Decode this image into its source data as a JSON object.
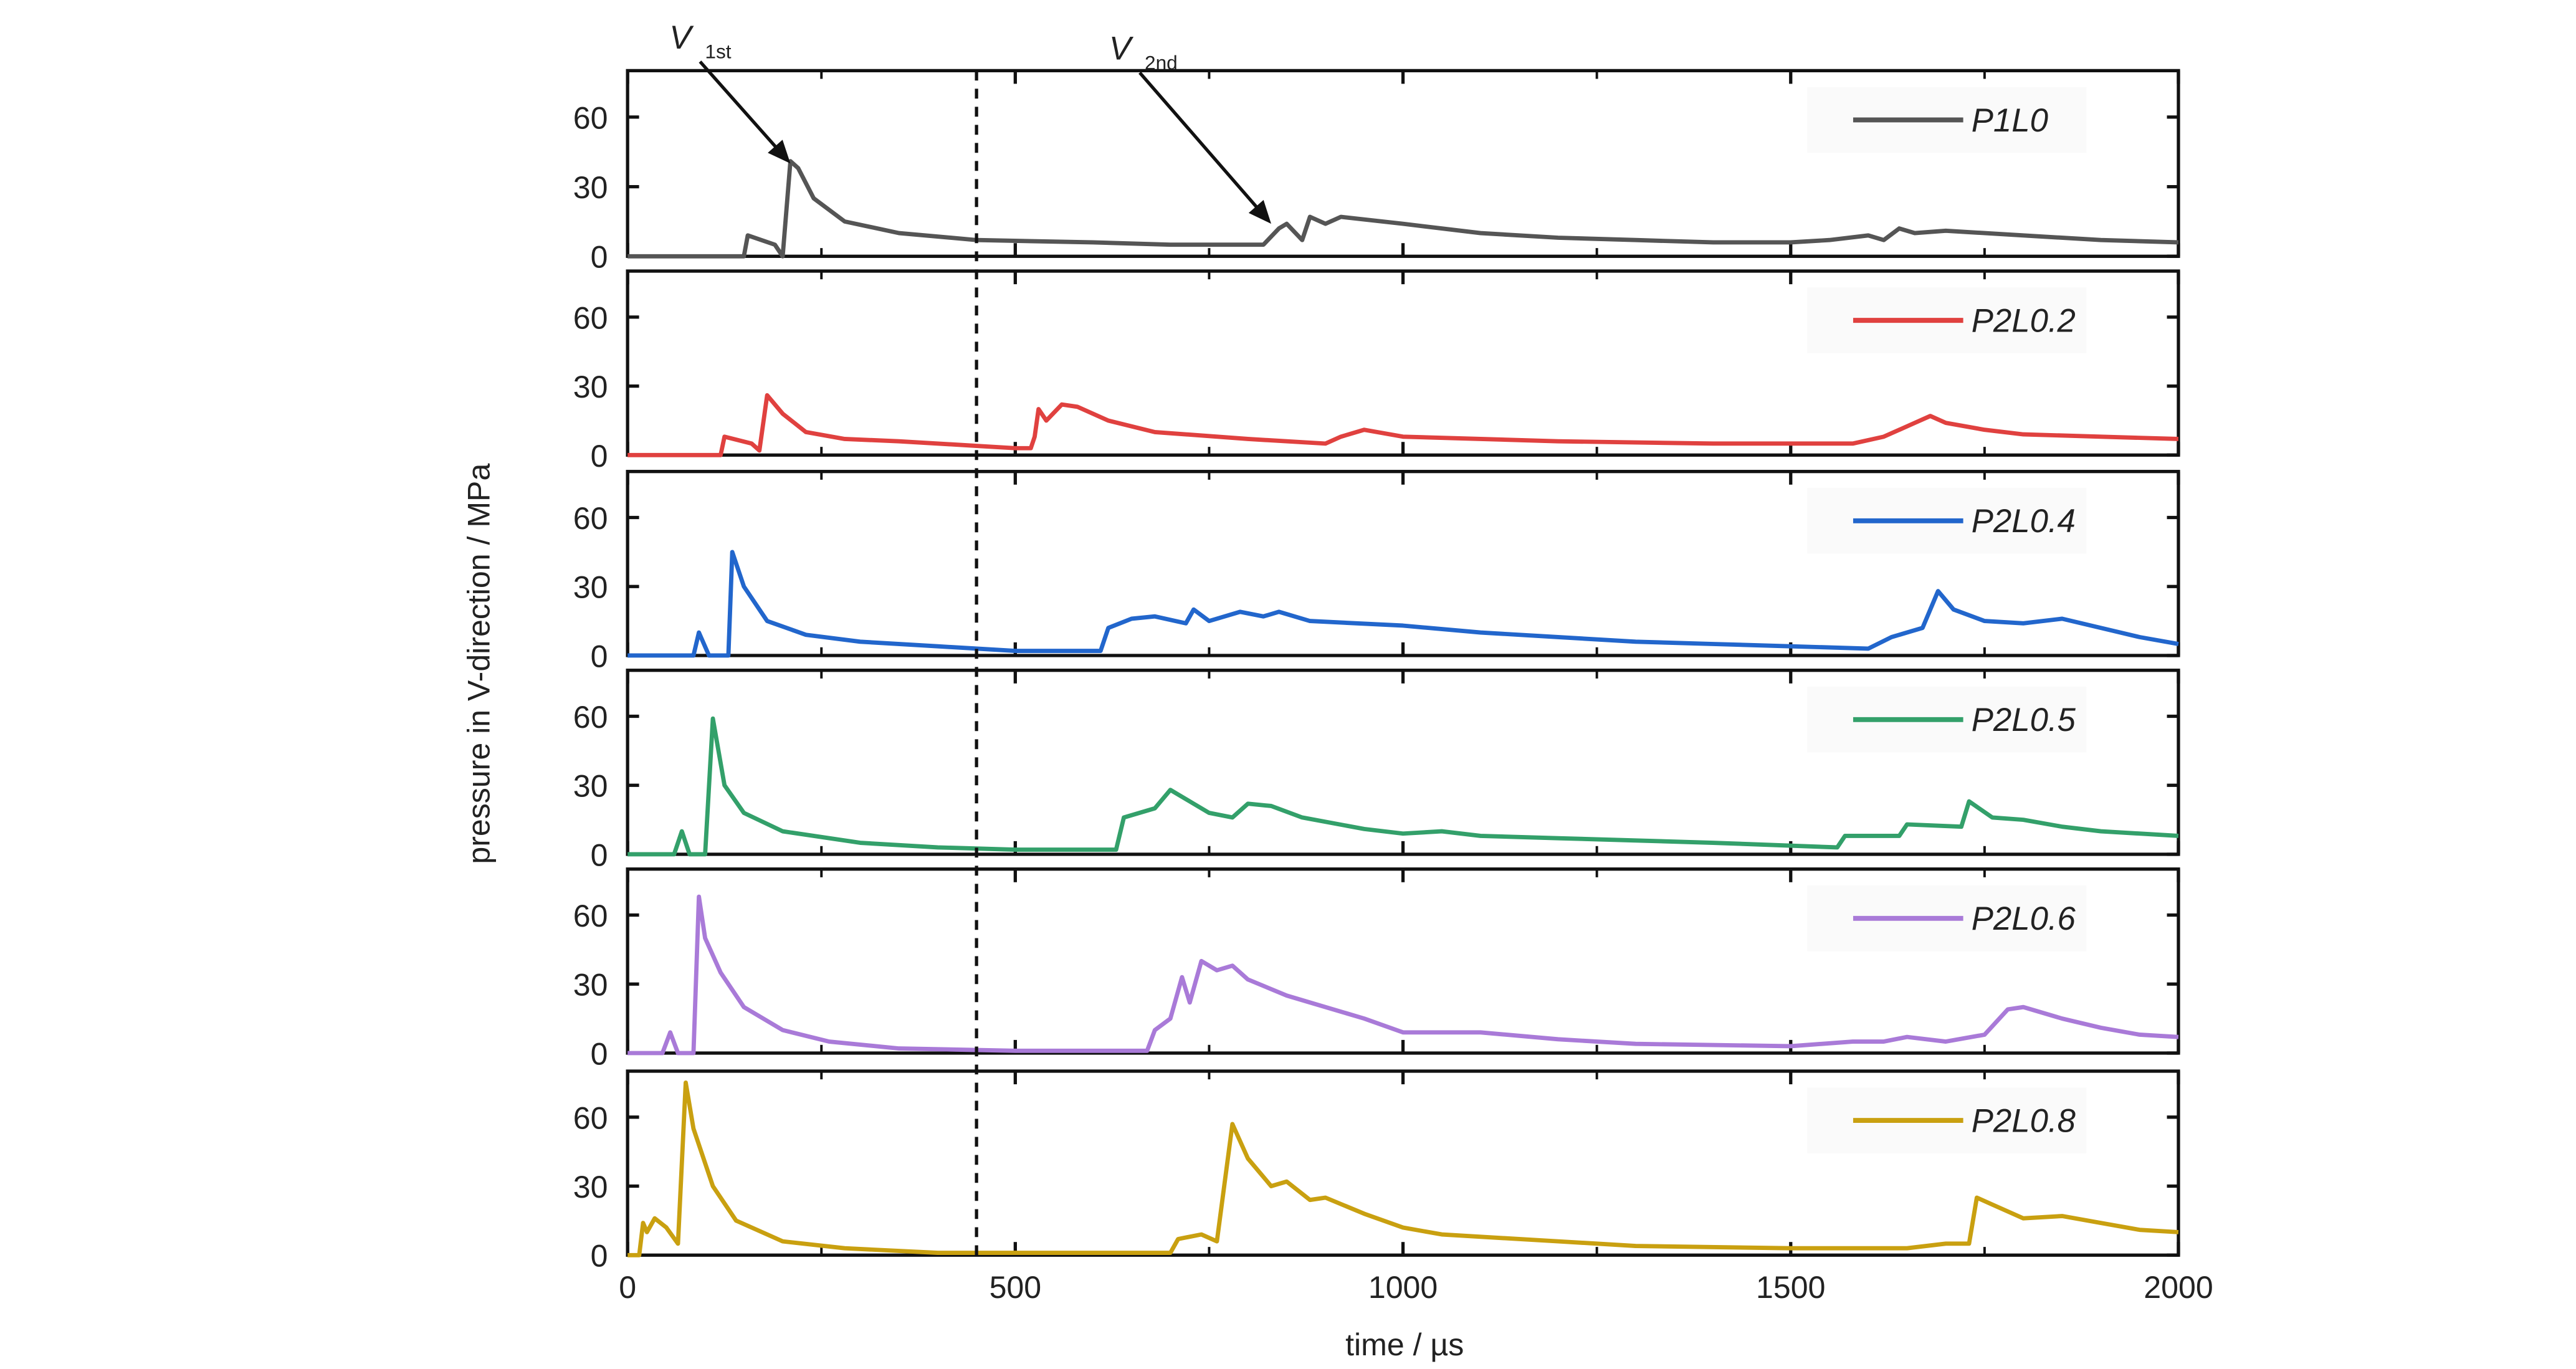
{
  "y_label": "pressure in V-direction / MPa",
  "x_label": "time / µs",
  "reference_x": 450,
  "chart_data": [
    {
      "type": "line",
      "x": [
        0,
        150,
        155,
        190,
        200,
        210,
        220,
        240,
        280,
        350,
        450,
        600,
        700,
        820,
        840,
        850,
        870,
        880,
        900,
        920,
        1000,
        1100,
        1200,
        1300,
        1400,
        1500,
        1550,
        1600,
        1620,
        1640,
        1660,
        1700,
        1800,
        1900,
        2000
      ],
      "series": [
        {
          "name": "P1L0",
          "color": "#555555",
          "values": [
            0,
            0,
            9,
            5,
            0,
            41,
            38,
            25,
            15,
            10,
            7,
            6,
            5,
            5,
            12,
            14,
            7,
            17,
            14,
            17,
            14,
            10,
            8,
            7,
            6,
            6,
            7,
            9,
            7,
            12,
            10,
            11,
            9,
            7,
            6
          ]
        }
      ],
      "annotations": [
        {
          "text": "V",
          "sub": "1st",
          "xy": [
            210,
            40
          ]
        },
        {
          "text": "V",
          "sub": "2nd",
          "xy": [
            830,
            14
          ]
        }
      ],
      "xlim": [
        0,
        2000
      ],
      "xticks": [
        0,
        500,
        1000,
        1500,
        2000
      ],
      "xticks_minor": [
        250,
        750,
        1250,
        1750
      ],
      "ylim": [
        0,
        80
      ],
      "yticks": [
        0,
        30,
        60
      ]
    },
    {
      "type": "line",
      "x": [
        0,
        120,
        125,
        160,
        170,
        180,
        200,
        230,
        280,
        350,
        450,
        500,
        520,
        525,
        530,
        540,
        560,
        580,
        620,
        680,
        800,
        900,
        920,
        950,
        1000,
        1100,
        1200,
        1400,
        1580,
        1620,
        1660,
        1680,
        1700,
        1750,
        1800,
        1900,
        2000
      ],
      "series": [
        {
          "name": "P2L0.2",
          "color": "#e0413f",
          "values": [
            0,
            0,
            8,
            5,
            2,
            26,
            18,
            10,
            7,
            6,
            4,
            3,
            3,
            8,
            20,
            15,
            22,
            21,
            15,
            10,
            7,
            5,
            8,
            11,
            8,
            7,
            6,
            5,
            5,
            8,
            14,
            17,
            14,
            11,
            9,
            8,
            7
          ]
        }
      ],
      "xlim": [
        0,
        2000
      ],
      "xticks": [
        0,
        500,
        1000,
        1500,
        2000
      ],
      "xticks_minor": [
        250,
        750,
        1250,
        1750
      ],
      "ylim": [
        0,
        80
      ],
      "yticks": [
        0,
        30,
        60
      ]
    },
    {
      "type": "line",
      "x": [
        0,
        85,
        92,
        105,
        130,
        135,
        150,
        180,
        230,
        300,
        400,
        500,
        610,
        620,
        650,
        680,
        720,
        730,
        750,
        790,
        820,
        840,
        880,
        1000,
        1100,
        1200,
        1300,
        1400,
        1500,
        1600,
        1630,
        1670,
        1690,
        1710,
        1750,
        1800,
        1850,
        1900,
        1950,
        2000
      ],
      "series": [
        {
          "name": "P2L0.4",
          "color": "#2266cc",
          "values": [
            0,
            0,
            10,
            0,
            0,
            45,
            30,
            15,
            9,
            6,
            4,
            2,
            2,
            12,
            16,
            17,
            14,
            20,
            15,
            19,
            17,
            19,
            15,
            13,
            10,
            8,
            6,
            5,
            4,
            3,
            8,
            12,
            28,
            20,
            15,
            14,
            16,
            12,
            8,
            5
          ]
        }
      ],
      "xlim": [
        0,
        2000
      ],
      "xticks": [
        0,
        500,
        1000,
        1500,
        2000
      ],
      "xticks_minor": [
        250,
        750,
        1250,
        1750
      ],
      "ylim": [
        0,
        80
      ],
      "yticks": [
        0,
        30,
        60
      ]
    },
    {
      "type": "line",
      "x": [
        0,
        60,
        70,
        80,
        100,
        110,
        125,
        150,
        200,
        300,
        400,
        500,
        630,
        640,
        680,
        700,
        730,
        750,
        780,
        800,
        830,
        870,
        950,
        1000,
        1050,
        1100,
        1200,
        1300,
        1400,
        1560,
        1570,
        1640,
        1650,
        1720,
        1730,
        1760,
        1800,
        1850,
        1900,
        2000
      ],
      "series": [
        {
          "name": "P2L0.5",
          "color": "#33a06a",
          "values": [
            0,
            0,
            10,
            0,
            0,
            59,
            30,
            18,
            10,
            5,
            3,
            2,
            2,
            16,
            20,
            28,
            22,
            18,
            16,
            22,
            21,
            16,
            11,
            9,
            10,
            8,
            7,
            6,
            5,
            3,
            8,
            8,
            13,
            12,
            23,
            16,
            15,
            12,
            10,
            8
          ]
        }
      ],
      "xlim": [
        0,
        2000
      ],
      "xticks": [
        0,
        500,
        1000,
        1500,
        2000
      ],
      "xticks_minor": [
        250,
        750,
        1250,
        1750
      ],
      "ylim": [
        0,
        80
      ],
      "yticks": [
        0,
        30,
        60
      ]
    },
    {
      "type": "line",
      "x": [
        0,
        45,
        55,
        65,
        85,
        92,
        100,
        120,
        150,
        200,
        260,
        350,
        500,
        670,
        680,
        700,
        715,
        725,
        740,
        760,
        780,
        800,
        850,
        880,
        950,
        1000,
        1100,
        1200,
        1300,
        1500,
        1580,
        1620,
        1650,
        1700,
        1750,
        1780,
        1800,
        1850,
        1900,
        1950,
        2000
      ],
      "series": [
        {
          "name": "P2L0.6",
          "color": "#a97ad8",
          "values": [
            0,
            0,
            9,
            0,
            0,
            68,
            50,
            35,
            20,
            10,
            5,
            2,
            1,
            1,
            10,
            15,
            33,
            22,
            40,
            36,
            38,
            32,
            25,
            22,
            15,
            9,
            9,
            6,
            4,
            3,
            5,
            5,
            7,
            5,
            8,
            19,
            20,
            15,
            11,
            8,
            7
          ]
        }
      ],
      "xlim": [
        0,
        2000
      ],
      "xticks": [
        0,
        500,
        1000,
        1500,
        2000
      ],
      "xticks_minor": [
        250,
        750,
        1250,
        1750
      ],
      "ylim": [
        0,
        80
      ],
      "yticks": [
        0,
        30,
        60
      ]
    },
    {
      "type": "line",
      "x": [
        0,
        15,
        20,
        25,
        35,
        50,
        65,
        75,
        85,
        110,
        140,
        200,
        280,
        400,
        700,
        710,
        740,
        760,
        780,
        800,
        830,
        850,
        880,
        900,
        950,
        1000,
        1050,
        1200,
        1300,
        1500,
        1650,
        1700,
        1730,
        1740,
        1760,
        1800,
        1850,
        1900,
        1950,
        2000
      ],
      "series": [
        {
          "name": "P2L0.8",
          "color": "#c9a010",
          "values": [
            0,
            0,
            14,
            10,
            16,
            12,
            5,
            75,
            55,
            30,
            15,
            6,
            3,
            1,
            1,
            7,
            9,
            6,
            57,
            42,
            30,
            32,
            24,
            25,
            18,
            12,
            9,
            6,
            4,
            3,
            3,
            5,
            5,
            25,
            22,
            16,
            17,
            14,
            11,
            10
          ]
        }
      ],
      "xlim": [
        0,
        2000
      ],
      "xticks": [
        0,
        500,
        1000,
        1500,
        2000
      ],
      "xticks_minor": [
        250,
        750,
        1250,
        1750
      ],
      "ylim": [
        0,
        80
      ],
      "yticks": [
        0,
        30,
        60
      ]
    }
  ]
}
